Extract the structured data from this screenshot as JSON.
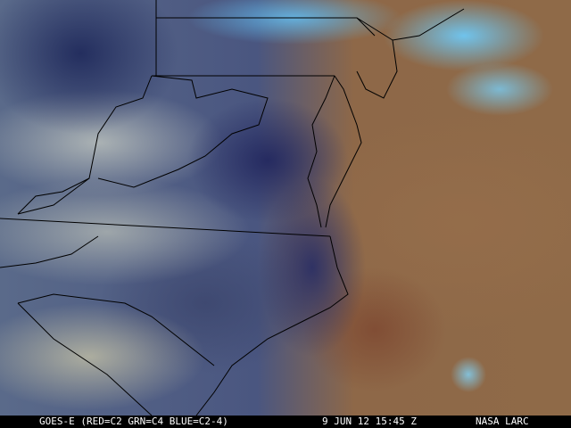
{
  "caption": {
    "satellite": "GOES-E (RED=C2 GRN=C4 BLUE=C2-4)",
    "datetime": "9 JUN 12 15:45 Z",
    "credit": "NASA LARC"
  },
  "colors": {
    "ocean_tan": "#8f6a48",
    "cloud_blue": "#6ec8f5",
    "land_navy": "#23285f",
    "border_line": "#000000"
  }
}
